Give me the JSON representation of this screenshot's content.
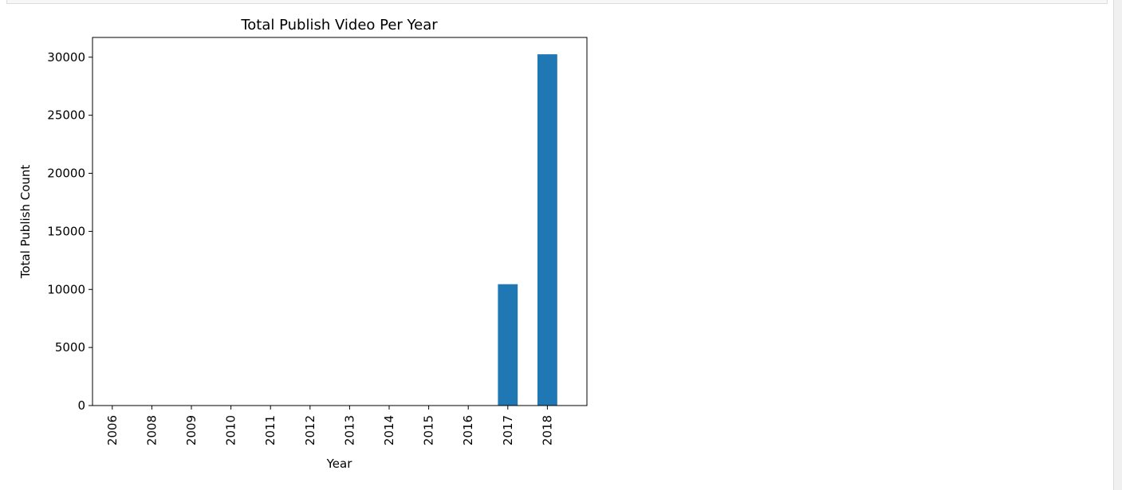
{
  "chart_data": {
    "type": "bar",
    "title": "Total Publish Video Per Year",
    "xlabel": "Year",
    "ylabel": "Total Publish Count",
    "categories": [
      "2006",
      "2008",
      "2009",
      "2010",
      "2011",
      "2012",
      "2013",
      "2014",
      "2015",
      "2016",
      "2017",
      "2018"
    ],
    "values": [
      1,
      1,
      1,
      1,
      1,
      1,
      1,
      1,
      1,
      1,
      10450,
      30250
    ],
    "ylim": [
      0,
      31700
    ],
    "yticks": [
      0,
      5000,
      10000,
      15000,
      20000,
      25000,
      30000
    ],
    "bar_color": "#1f77b4",
    "grid": false,
    "legend": "none"
  }
}
